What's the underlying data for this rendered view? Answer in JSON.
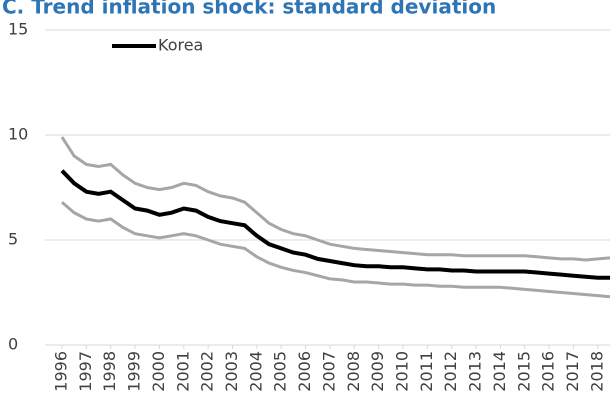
{
  "chart_data": {
    "type": "line",
    "title": "C. Trend inflation shock: standard deviation",
    "x": [
      1996,
      1996.5,
      1997,
      1997.5,
      1998,
      1998.5,
      1999,
      1999.5,
      2000,
      2000.5,
      2001,
      2001.5,
      2002,
      2002.5,
      2003,
      2003.5,
      2004,
      2004.5,
      2005,
      2005.5,
      2006,
      2006.5,
      2007,
      2007.5,
      2008,
      2008.5,
      2009,
      2009.5,
      2010,
      2010.5,
      2011,
      2011.5,
      2012,
      2012.5,
      2013,
      2013.5,
      2014,
      2014.5,
      2015,
      2015.5,
      2016,
      2016.5,
      2017,
      2017.5,
      2018,
      2018.5
    ],
    "series": [
      {
        "color": "#a6a6a6",
        "values": [
          9.9,
          9.0,
          8.6,
          8.5,
          8.6,
          8.1,
          7.7,
          7.5,
          7.4,
          7.5,
          7.7,
          7.6,
          7.3,
          7.1,
          7.0,
          6.8,
          6.3,
          5.8,
          5.5,
          5.3,
          5.2,
          5.0,
          4.8,
          4.7,
          4.6,
          4.55,
          4.5,
          4.45,
          4.4,
          4.35,
          4.3,
          4.3,
          4.3,
          4.25,
          4.25,
          4.25,
          4.25,
          4.25,
          4.25,
          4.2,
          4.15,
          4.1,
          4.1,
          4.05,
          4.1,
          4.15
        ]
      },
      {
        "color": "#a6a6a6",
        "values": [
          6.8,
          6.3,
          6.0,
          5.9,
          6.0,
          5.6,
          5.3,
          5.2,
          5.1,
          5.2,
          5.3,
          5.2,
          5.0,
          4.8,
          4.7,
          4.6,
          4.2,
          3.9,
          3.7,
          3.55,
          3.45,
          3.3,
          3.15,
          3.1,
          3.0,
          3.0,
          2.95,
          2.9,
          2.9,
          2.85,
          2.85,
          2.8,
          2.8,
          2.75,
          2.75,
          2.75,
          2.75,
          2.7,
          2.65,
          2.6,
          2.55,
          2.5,
          2.45,
          2.4,
          2.35,
          2.3
        ]
      },
      {
        "name": "Korea",
        "color": "#000000",
        "values": [
          8.3,
          7.7,
          7.3,
          7.2,
          7.3,
          6.9,
          6.5,
          6.4,
          6.2,
          6.3,
          6.5,
          6.4,
          6.1,
          5.9,
          5.8,
          5.7,
          5.2,
          4.8,
          4.6,
          4.4,
          4.3,
          4.1,
          4.0,
          3.9,
          3.8,
          3.75,
          3.75,
          3.7,
          3.7,
          3.65,
          3.6,
          3.6,
          3.55,
          3.55,
          3.5,
          3.5,
          3.5,
          3.5,
          3.5,
          3.45,
          3.4,
          3.35,
          3.3,
          3.25,
          3.2,
          3.2
        ]
      }
    ],
    "xlim": [
      1996,
      2018.5
    ],
    "xticks": [
      1996,
      1997,
      1998,
      1999,
      2000,
      2001,
      2002,
      2003,
      2004,
      2005,
      2006,
      2007,
      2008,
      2009,
      2010,
      2011,
      2012,
      2013,
      2014,
      2015,
      2016,
      2017,
      2018
    ],
    "ylim": [
      0,
      15
    ],
    "yticks": [
      0,
      5,
      10,
      15
    ],
    "grid": true,
    "legend": "upper-left"
  }
}
